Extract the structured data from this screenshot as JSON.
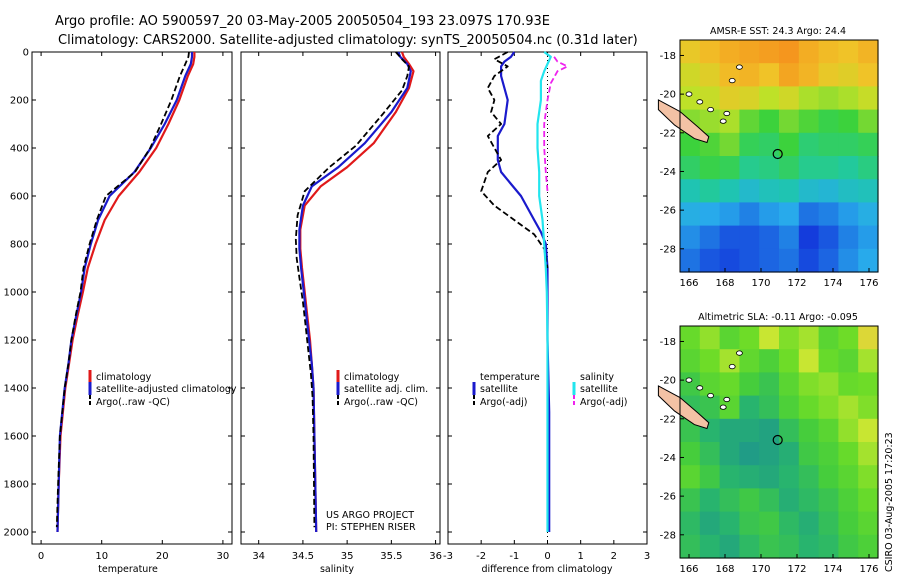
{
  "header": {
    "line1": "Argo profile: AO 5900597_20 03-May-2005 20050504_193 23.097S 170.93E",
    "line2": "Climatology: CARS2000. Satellite-adjusted climatology: synTS_20050504.nc (0.31d later)"
  },
  "colors": {
    "climatology": "#e0191a",
    "satellite": "#1a1acc",
    "argo": "#000000",
    "salinity_sat": "#22e5ee",
    "salinity_argo": "#ee22ee"
  },
  "credit": "CSIRO 03-Aug-2005 17:20:23",
  "project": {
    "line1": "US ARGO PROJECT",
    "line2": "PI: STEPHEN RISER"
  },
  "chart_data": [
    {
      "id": "temperature",
      "type": "line",
      "title": "",
      "xlabel": "temperature",
      "ylabel": "",
      "xlim": [
        -1.5,
        31.5
      ],
      "ylim": [
        0,
        2050
      ],
      "y_inverted": true,
      "xticks": [
        0,
        10,
        20,
        30
      ],
      "yticks": [
        0,
        200,
        400,
        600,
        800,
        1000,
        1200,
        1400,
        1600,
        1800,
        2000
      ],
      "legend": [
        "climatology",
        "satellite-adjusted climatology",
        "Argo(..raw -QC)"
      ],
      "series": [
        {
          "name": "climatology",
          "color": "#e0191a",
          "dash": false,
          "x": [
            25.3,
            25.3,
            25.1,
            24.2,
            22.8,
            21.0,
            19.0,
            16.2,
            12.8,
            10.5,
            9.0,
            7.7,
            6.9,
            6.0,
            5.2,
            4.6,
            4.0,
            3.6,
            3.2,
            2.9,
            2.7
          ],
          "y": [
            0,
            20,
            50,
            100,
            200,
            300,
            400,
            500,
            600,
            700,
            800,
            900,
            1000,
            1100,
            1200,
            1300,
            1400,
            1500,
            1600,
            1800,
            2000
          ]
        },
        {
          "name": "satellite-adjusted climatology",
          "color": "#1a1acc",
          "dash": false,
          "x": [
            24.9,
            24.9,
            24.7,
            23.8,
            22.4,
            20.4,
            18.1,
            15.4,
            11.3,
            9.4,
            8.2,
            7.2,
            6.6,
            5.8,
            5.0,
            4.5,
            3.9,
            3.5,
            3.1,
            2.9,
            2.7
          ],
          "y": [
            0,
            20,
            50,
            100,
            200,
            300,
            400,
            500,
            600,
            700,
            800,
            900,
            1000,
            1100,
            1200,
            1300,
            1400,
            1500,
            1600,
            1800,
            2000
          ]
        },
        {
          "name": "Argo(..raw -QC)",
          "color": "#000000",
          "dash": true,
          "x": [
            24.4,
            24.3,
            23.8,
            22.9,
            21.5,
            19.8,
            18.0,
            15.5,
            10.7,
            9.2,
            8.0,
            7.0,
            6.5,
            5.7,
            5.0,
            4.5,
            3.9,
            3.5,
            3.1,
            2.8,
            2.6
          ],
          "y": [
            0,
            20,
            50,
            100,
            200,
            300,
            400,
            500,
            600,
            700,
            800,
            900,
            1000,
            1100,
            1200,
            1300,
            1400,
            1500,
            1600,
            1800,
            1980
          ]
        }
      ]
    },
    {
      "id": "salinity",
      "type": "line",
      "title": "",
      "xlabel": "salinity",
      "ylabel": "",
      "xlim": [
        33.8,
        36.05
      ],
      "ylim": [
        0,
        2050
      ],
      "y_inverted": true,
      "xticks": [
        34,
        34.5,
        35,
        35.5,
        36
      ],
      "yticks": [],
      "legend": [
        "climatology",
        "satellite adj. clim.",
        "Argo(..raw -QC)"
      ],
      "series": [
        {
          "name": "climatology",
          "color": "#e0191a",
          "dash": false,
          "x": [
            35.62,
            35.64,
            35.7,
            35.75,
            35.7,
            35.55,
            35.3,
            35.0,
            34.7,
            34.52,
            34.47,
            34.47,
            34.49,
            34.52,
            34.55,
            34.58,
            34.6,
            34.62,
            34.63,
            34.64,
            34.65
          ],
          "y": [
            0,
            20,
            50,
            80,
            150,
            250,
            380,
            480,
            560,
            640,
            740,
            820,
            900,
            1000,
            1100,
            1200,
            1300,
            1400,
            1600,
            1800,
            2000
          ]
        },
        {
          "name": "satellite adj. clim.",
          "color": "#1a1acc",
          "dash": false,
          "x": [
            35.58,
            35.6,
            35.68,
            35.72,
            35.68,
            35.5,
            35.2,
            34.9,
            34.6,
            34.5,
            34.46,
            34.46,
            34.48,
            34.51,
            34.54,
            34.57,
            34.6,
            34.62,
            34.63,
            34.64,
            34.65
          ],
          "y": [
            0,
            20,
            50,
            80,
            150,
            250,
            380,
            480,
            560,
            640,
            740,
            820,
            900,
            1000,
            1100,
            1200,
            1300,
            1400,
            1600,
            1800,
            2000
          ]
        },
        {
          "name": "Argo(..raw -QC)",
          "color": "#000000",
          "dash": true,
          "x": [
            35.55,
            35.62,
            35.7,
            35.68,
            35.62,
            35.4,
            35.1,
            34.8,
            34.52,
            34.44,
            34.42,
            34.43,
            34.46,
            34.5,
            34.53,
            34.56,
            34.59,
            34.61,
            34.62,
            34.63
          ],
          "y": [
            0,
            30,
            60,
            100,
            160,
            260,
            390,
            480,
            580,
            680,
            780,
            860,
            940,
            1040,
            1140,
            1240,
            1340,
            1440,
            1600,
            1980
          ]
        }
      ]
    },
    {
      "id": "difference",
      "type": "line",
      "title": "",
      "xlabel": "difference from climatology",
      "ylabel": "",
      "xlim": [
        -3,
        3
      ],
      "ylim": [
        0,
        2050
      ],
      "y_inverted": true,
      "xticks": [
        -3,
        -2,
        -1,
        0,
        1,
        2,
        3
      ],
      "yticks": [],
      "legend": [
        "temperature",
        "satellite",
        "Argo(-adj)",
        "salinity",
        "satellite",
        "Argo(-adj)"
      ],
      "series": [
        {
          "name": "temperature satellite",
          "color": "#1a1acc",
          "dash": false,
          "x": [
            -1.0,
            -1.1,
            -1.3,
            -1.4,
            -1.4,
            -1.3,
            -1.2,
            -1.3,
            -1.5,
            -1.5,
            -1.5,
            -1.4,
            -1.1,
            -0.8,
            -0.6,
            -0.4,
            -0.2,
            -0.05,
            0.0,
            0.0,
            0.0,
            0.05,
            0.05,
            0.05
          ],
          "y": [
            0,
            20,
            40,
            60,
            100,
            150,
            200,
            300,
            350,
            400,
            450,
            500,
            550,
            600,
            650,
            700,
            750,
            800,
            900,
            1000,
            1200,
            1500,
            1800,
            2000
          ]
        },
        {
          "name": "temperature Argo(-adj)",
          "color": "#000000",
          "dash": true,
          "x": [
            -1.2,
            -1.6,
            -1.2,
            -1.6,
            -1.8,
            -1.6,
            -1.7,
            -1.4,
            -1.8,
            -1.6,
            -1.4,
            -1.8,
            -2.0,
            -1.6,
            -1.0,
            -0.4,
            -0.1,
            0.0
          ],
          "y": [
            0,
            30,
            60,
            100,
            150,
            200,
            250,
            300,
            350,
            400,
            450,
            500,
            580,
            640,
            700,
            760,
            820,
            900
          ]
        },
        {
          "name": "salinity satellite",
          "color": "#22e5ee",
          "dash": false,
          "x": [
            -0.1,
            0.1,
            0.0,
            -0.1,
            -0.2,
            -0.2,
            -0.3,
            -0.3,
            -0.25,
            -0.25,
            -0.15,
            -0.1,
            -0.05,
            -0.02,
            0.0,
            0.0,
            0.0
          ],
          "y": [
            0,
            20,
            50,
            80,
            120,
            200,
            300,
            400,
            500,
            600,
            700,
            800,
            900,
            1000,
            1200,
            1600,
            2000
          ]
        },
        {
          "name": "salinity Argo(-adj)",
          "color": "#ee22ee",
          "dash": true,
          "x": [
            0.2,
            0.3,
            0.6,
            0.3,
            0.1,
            0.0,
            -0.1,
            -0.1,
            -0.05,
            0.0
          ],
          "y": [
            20,
            40,
            60,
            80,
            130,
            200,
            300,
            400,
            500,
            580
          ]
        }
      ]
    },
    {
      "id": "amsre-sst-map",
      "type": "heatmap",
      "title": "AMSR-E SST: 24.3 Argo: 24.4",
      "xlabel": "",
      "ylabel": "",
      "xlim": [
        165.5,
        176.5
      ],
      "ylim": [
        -29.2,
        -17.2
      ],
      "xticks": [
        166,
        168,
        170,
        172,
        174,
        176
      ],
      "yticks": [
        -18,
        -20,
        -22,
        -24,
        -26,
        -28
      ],
      "float_position": {
        "lon": 170.93,
        "lat": -23.097
      },
      "values": [
        [
          25.4,
          25.6,
          25.8,
          25.9,
          26.0,
          26.1,
          25.8,
          25.6,
          25.5,
          25.7
        ],
        [
          25.1,
          25.3,
          25.6,
          25.7,
          25.5,
          25.9,
          25.7,
          25.4,
          25.3,
          25.5
        ],
        [
          24.9,
          25.0,
          25.3,
          25.2,
          24.9,
          25.1,
          24.8,
          24.7,
          24.8,
          25.0
        ],
        [
          24.6,
          24.7,
          24.8,
          24.4,
          24.2,
          24.5,
          24.3,
          24.1,
          24.2,
          24.5
        ],
        [
          24.2,
          24.3,
          24.5,
          24.0,
          23.9,
          24.2,
          23.8,
          23.9,
          23.9,
          24.0
        ],
        [
          23.9,
          24.1,
          24.0,
          23.6,
          23.7,
          23.9,
          23.6,
          23.6,
          23.5,
          23.7
        ],
        [
          23.3,
          23.5,
          23.3,
          23.0,
          23.2,
          23.3,
          23.0,
          22.9,
          23.1,
          23.2
        ],
        [
          22.7,
          22.6,
          22.5,
          22.3,
          22.5,
          22.6,
          22.2,
          22.3,
          22.5,
          22.7
        ],
        [
          22.4,
          22.2,
          22.0,
          22.0,
          22.1,
          22.3,
          21.8,
          22.0,
          22.3,
          22.5
        ],
        [
          22.2,
          22.0,
          21.9,
          22.0,
          22.1,
          22.2,
          21.9,
          22.1,
          22.4,
          22.6
        ]
      ]
    },
    {
      "id": "altimetric-sla-map",
      "type": "heatmap",
      "title": "Altimetric SLA: -0.11 Argo: -0.095",
      "xlabel": "",
      "ylabel": "",
      "xlim": [
        165.5,
        176.5
      ],
      "ylim": [
        -29.2,
        -17.2
      ],
      "xticks": [
        166,
        168,
        170,
        172,
        174,
        176
      ],
      "yticks": [
        -18,
        -20,
        -22,
        -24,
        -26,
        -28
      ],
      "float_position": {
        "lon": 170.93,
        "lat": -23.097
      },
      "values": [
        [
          0.02,
          0.05,
          0.0,
          0.03,
          0.08,
          0.04,
          0.06,
          0.0,
          0.03,
          0.1
        ],
        [
          0.0,
          0.03,
          0.06,
          0.01,
          -0.02,
          0.03,
          0.08,
          0.02,
          0.0,
          0.06
        ],
        [
          -0.04,
          0.0,
          0.02,
          -0.03,
          -0.05,
          0.0,
          0.04,
          0.05,
          0.02,
          0.03
        ],
        [
          -0.06,
          -0.05,
          0.0,
          -0.08,
          -0.06,
          -0.02,
          0.02,
          0.04,
          0.06,
          0.04
        ],
        [
          -0.05,
          -0.08,
          -0.1,
          -0.1,
          -0.11,
          -0.06,
          -0.03,
          0.0,
          0.05,
          0.08
        ],
        [
          -0.03,
          -0.06,
          -0.1,
          -0.12,
          -0.11,
          -0.09,
          -0.04,
          -0.02,
          0.02,
          0.06
        ],
        [
          0.0,
          -0.04,
          -0.08,
          -0.09,
          -0.1,
          -0.08,
          -0.06,
          -0.03,
          0.0,
          0.04
        ],
        [
          -0.05,
          -0.08,
          -0.06,
          -0.04,
          -0.06,
          -0.09,
          -0.07,
          -0.05,
          -0.02,
          0.02
        ],
        [
          -0.07,
          -0.1,
          -0.08,
          -0.05,
          -0.04,
          -0.07,
          -0.09,
          -0.06,
          -0.03,
          0.0
        ],
        [
          -0.06,
          -0.08,
          -0.1,
          -0.07,
          -0.05,
          -0.06,
          -0.08,
          -0.07,
          -0.04,
          -0.02
        ]
      ]
    }
  ]
}
